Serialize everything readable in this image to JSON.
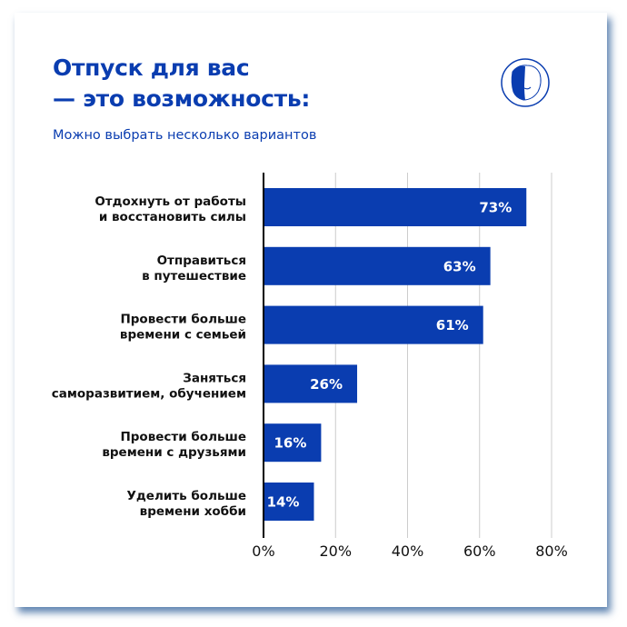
{
  "header": {
    "title_line1": "Отпуск для вас",
    "title_line2": "— это возможность:",
    "subtitle": "Можно выбрать несколько вариантов",
    "logo": "lion-head-logo"
  },
  "colors": {
    "bar": "#0a3db0",
    "title": "#0a3db0",
    "grid": "#cccccc",
    "axis": "#000000"
  },
  "chart_data": {
    "type": "bar",
    "orientation": "horizontal",
    "categories": [
      [
        "Отдохнуть от работы",
        "и восстановить силы"
      ],
      [
        "Отправиться",
        "в путешествие"
      ],
      [
        "Провести больше",
        "времени с семьей"
      ],
      [
        "Заняться",
        "саморазвитием, обучением"
      ],
      [
        "Провести больше",
        "времени с друзьями"
      ],
      [
        "Уделить больше",
        "времени хобби"
      ]
    ],
    "values": [
      73,
      63,
      61,
      26,
      16,
      14
    ],
    "data_labels": [
      "73%",
      "63%",
      "61%",
      "26%",
      "16%",
      "14%"
    ],
    "xlim": [
      0,
      80
    ],
    "xticks": [
      0,
      20,
      40,
      60,
      80
    ],
    "xtick_labels": [
      "0%",
      "20%",
      "40%",
      "60%",
      "80%"
    ],
    "grid": "vertical",
    "title": "",
    "xlabel": "",
    "ylabel": ""
  }
}
